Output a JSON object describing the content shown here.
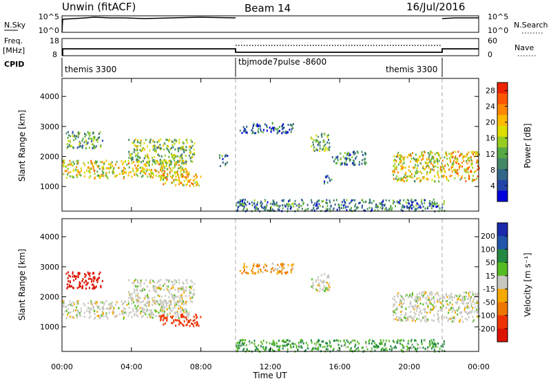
{
  "header": {
    "site": "Unwin (fitACF)",
    "beam": "Beam 14",
    "date": "16/Jul/2016"
  },
  "summary": {
    "nsky_label": "N.Sky",
    "nsky_ticks": [
      "10^5",
      "10^0"
    ],
    "nsearch_label": "N.Search",
    "nsearch_ticks": [
      "10^5",
      "10^0"
    ],
    "freq_label_1": "Freq.",
    "freq_label_2": "[MHz]",
    "freq_ticks": [
      "18",
      "8"
    ],
    "nave_label": "Nave",
    "nave_ticks": [
      "60",
      "0"
    ],
    "cpid_label": "CPID"
  },
  "cpid_segments": [
    {
      "name": "themis 3300",
      "start_h": 0,
      "end_h": 10
    },
    {
      "name": "tbjmode7pulse -8600",
      "start_h": 10,
      "end_h": 22
    },
    {
      "name": "themis 3300",
      "start_h": 22,
      "end_h": 24
    }
  ],
  "panels": {
    "power": {
      "ylabel": "Slant Range [km]",
      "cbar_label": "Power [dB]"
    },
    "velocity": {
      "ylabel": "Slant Range [km]",
      "cbar_label": "Velocity [m s⁻¹]"
    }
  },
  "xaxis": {
    "label": "Time UT"
  },
  "chart_data": [
    {
      "type": "heatmap",
      "title": "Power",
      "xlabel": "Time UT",
      "ylabel": "Slant Range [km]",
      "x_range_h": [
        0,
        24
      ],
      "x_ticks": [
        "00:00",
        "04:00",
        "08:00",
        "12:00",
        "16:00",
        "20:00",
        "00:00"
      ],
      "ylim": [
        180,
        4600
      ],
      "y_ticks": [
        1000,
        2000,
        3000,
        4000
      ],
      "colorbar": {
        "label": "Power [dB]",
        "ticks": [
          4,
          8,
          12,
          16,
          20,
          24,
          28
        ],
        "range": [
          0,
          30
        ],
        "colors": [
          "#0000dd",
          "#2244aa",
          "#336688",
          "#448866",
          "#55aa44",
          "#99cc22",
          "#dddd00",
          "#ffbb00",
          "#ff8800",
          "#ff5500",
          "#ee2200"
        ]
      },
      "echo_regions": [
        {
          "region": "main band",
          "t_start_h": 0,
          "t_end_h": 7.3,
          "range_km": [
            1300,
            1900
          ],
          "power_db": 18
        },
        {
          "region": "rising band",
          "t_start_h": 3.8,
          "t_end_h": 7.6,
          "range_km": [
            1800,
            2600
          ],
          "power_db": 14
        },
        {
          "region": "lower patch",
          "t_start_h": 5.6,
          "t_end_h": 8.0,
          "range_km": [
            1050,
            1450
          ],
          "power_db": 20
        },
        {
          "region": "upper scatter",
          "t_start_h": 0.2,
          "t_end_h": 2.3,
          "range_km": [
            2300,
            2850
          ],
          "power_db": 11
        },
        {
          "region": "late patch",
          "t_start_h": 9.0,
          "t_end_h": 9.5,
          "range_km": [
            1700,
            2100
          ],
          "power_db": 7
        },
        {
          "region": "night scatter",
          "t_start_h": 10.2,
          "t_end_h": 13.3,
          "range_km": [
            2800,
            3150
          ],
          "power_db": 6
        },
        {
          "region": "mid patch",
          "t_start_h": 14.3,
          "t_end_h": 15.4,
          "range_km": [
            2200,
            2800
          ],
          "power_db": 12
        },
        {
          "region": "mid band",
          "t_start_h": 15.5,
          "t_end_h": 17.5,
          "range_km": [
            1750,
            2200
          ],
          "power_db": 9
        },
        {
          "region": "small patch",
          "t_start_h": 15.0,
          "t_end_h": 15.5,
          "range_km": [
            1100,
            1400
          ],
          "power_db": 7
        },
        {
          "region": "evening rising",
          "t_start_h": 19.0,
          "t_end_h": 22.0,
          "range_km": [
            1200,
            2200
          ],
          "power_db": 17
        },
        {
          "region": "end band",
          "t_start_h": 22.0,
          "t_end_h": 24.0,
          "range_km": [
            1200,
            2200
          ],
          "power_db": 20
        },
        {
          "region": "ground scatter",
          "t_start_h": 10.0,
          "t_end_h": 22.0,
          "range_km": [
            200,
            600
          ],
          "power_db": 8
        }
      ]
    },
    {
      "type": "heatmap",
      "title": "Velocity",
      "xlabel": "Time UT",
      "ylabel": "Slant Range [km]",
      "x_range_h": [
        0,
        24
      ],
      "x_ticks": [
        "00:00",
        "04:00",
        "08:00",
        "12:00",
        "16:00",
        "20:00",
        "00:00"
      ],
      "ylim": [
        180,
        4600
      ],
      "y_ticks": [
        1000,
        2000,
        3000,
        4000
      ],
      "colorbar": {
        "label": "Velocity [m s⁻¹]",
        "ticks": [
          200,
          100,
          50,
          15,
          -15,
          -50,
          -100,
          -200
        ],
        "colors": [
          "#1a2aaa",
          "#2255aa",
          "#228844",
          "#55bb22",
          "#c8c8c0",
          "#f5a800",
          "#ee7700",
          "#ee3300",
          "#dd1100"
        ]
      },
      "echo_regions": [
        {
          "region": "main band",
          "t_start_h": 0,
          "t_end_h": 7.3,
          "range_km": [
            1300,
            1900
          ],
          "velocity_ms": 0
        },
        {
          "region": "rising band",
          "t_start_h": 3.8,
          "t_end_h": 7.6,
          "range_km": [
            1800,
            2600
          ],
          "velocity_ms": 0
        },
        {
          "region": "lower patch",
          "t_start_h": 5.6,
          "t_end_h": 8.0,
          "range_km": [
            1050,
            1450
          ],
          "velocity_ms": -120
        },
        {
          "region": "upper scatter",
          "t_start_h": 0.2,
          "t_end_h": 2.3,
          "range_km": [
            2300,
            2850
          ],
          "velocity_ms": -180
        },
        {
          "region": "night scatter",
          "t_start_h": 10.2,
          "t_end_h": 13.3,
          "range_km": [
            2800,
            3150
          ],
          "velocity_ms": -30
        },
        {
          "region": "mid patch",
          "t_start_h": 14.3,
          "t_end_h": 15.4,
          "range_km": [
            2200,
            2800
          ],
          "velocity_ms": 0
        },
        {
          "region": "evening rising",
          "t_start_h": 19.0,
          "t_end_h": 22.0,
          "range_km": [
            1200,
            2200
          ],
          "velocity_ms": 0
        },
        {
          "region": "end band",
          "t_start_h": 22.0,
          "t_end_h": 24.0,
          "range_km": [
            1200,
            2200
          ],
          "velocity_ms": 0
        },
        {
          "region": "ground scatter",
          "t_start_h": 10.0,
          "t_end_h": 22.0,
          "range_km": [
            200,
            600
          ],
          "velocity_ms": 30
        }
      ]
    }
  ]
}
